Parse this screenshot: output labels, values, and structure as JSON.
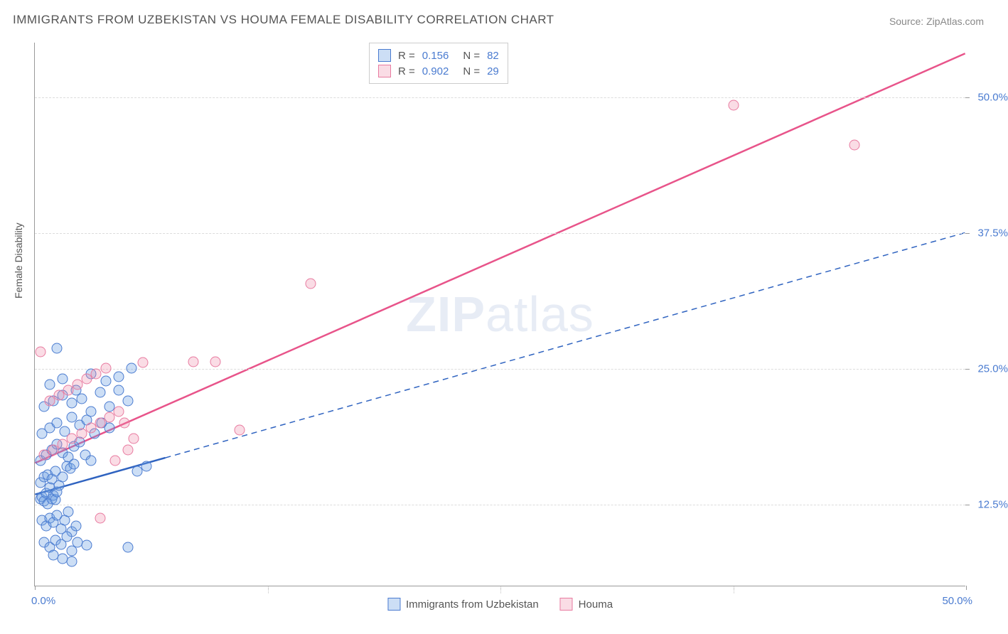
{
  "title": "IMMIGRANTS FROM UZBEKISTAN VS HOUMA FEMALE DISABILITY CORRELATION CHART",
  "source": "Source: ZipAtlas.com",
  "y_axis_label": "Female Disability",
  "watermark_bold": "ZIP",
  "watermark_light": "atlas",
  "chart": {
    "type": "scatter",
    "background_color": "#ffffff",
    "grid_color": "#dcdcdc",
    "axis_color": "#999999",
    "label_color": "#4a7bd0",
    "xlim": [
      0,
      50
    ],
    "ylim": [
      5,
      55
    ],
    "x_ticks": [
      0,
      12.5,
      25,
      37.5,
      50
    ],
    "y_gridlines": [
      12.5,
      25,
      37.5,
      50
    ],
    "x_tick_labels": {
      "left": "0.0%",
      "right": "50.0%"
    },
    "y_tick_labels": [
      "12.5%",
      "25.0%",
      "37.5%",
      "50.0%"
    ],
    "marker_size": 15,
    "series": [
      {
        "name": "Immigrants from Uzbekistan",
        "color_fill": "rgba(110,160,225,0.35)",
        "color_stroke": "#4a7bd0",
        "r_value": "0.156",
        "n_value": "82",
        "trend": {
          "x1": 0,
          "y1": 13.4,
          "x2": 50,
          "y2": 37.5,
          "solid_until_x": 7,
          "stroke": "#2f63c0",
          "width": 2.5
        },
        "points": [
          [
            0.3,
            13.0
          ],
          [
            0.4,
            13.2
          ],
          [
            0.5,
            12.8
          ],
          [
            0.6,
            13.5
          ],
          [
            0.7,
            12.5
          ],
          [
            0.8,
            14.0
          ],
          [
            0.9,
            13.0
          ],
          [
            1.0,
            13.3
          ],
          [
            1.1,
            12.9
          ],
          [
            1.2,
            13.6
          ],
          [
            0.3,
            14.5
          ],
          [
            0.5,
            15.0
          ],
          [
            0.7,
            15.2
          ],
          [
            0.9,
            14.8
          ],
          [
            1.1,
            15.5
          ],
          [
            1.3,
            14.2
          ],
          [
            1.5,
            15.0
          ],
          [
            1.7,
            16.0
          ],
          [
            1.9,
            15.8
          ],
          [
            2.1,
            16.2
          ],
          [
            0.4,
            11.0
          ],
          [
            0.6,
            10.5
          ],
          [
            0.8,
            11.2
          ],
          [
            1.0,
            10.8
          ],
          [
            1.2,
            11.5
          ],
          [
            1.4,
            10.2
          ],
          [
            1.6,
            11.0
          ],
          [
            1.8,
            11.8
          ],
          [
            2.0,
            10.0
          ],
          [
            2.2,
            10.5
          ],
          [
            0.5,
            9.0
          ],
          [
            0.8,
            8.5
          ],
          [
            1.1,
            9.2
          ],
          [
            1.4,
            8.8
          ],
          [
            1.7,
            9.5
          ],
          [
            2.0,
            8.2
          ],
          [
            2.3,
            9.0
          ],
          [
            1.0,
            7.8
          ],
          [
            1.5,
            7.5
          ],
          [
            2.0,
            7.2
          ],
          [
            0.3,
            16.5
          ],
          [
            0.6,
            17.0
          ],
          [
            0.9,
            17.5
          ],
          [
            1.2,
            18.0
          ],
          [
            1.5,
            17.2
          ],
          [
            1.8,
            16.8
          ],
          [
            2.1,
            17.8
          ],
          [
            2.4,
            18.2
          ],
          [
            2.7,
            17.0
          ],
          [
            3.0,
            16.5
          ],
          [
            0.4,
            19.0
          ],
          [
            0.8,
            19.5
          ],
          [
            1.2,
            20.0
          ],
          [
            1.6,
            19.2
          ],
          [
            2.0,
            20.5
          ],
          [
            2.4,
            19.8
          ],
          [
            2.8,
            20.2
          ],
          [
            3.2,
            19.0
          ],
          [
            3.6,
            20.0
          ],
          [
            4.0,
            19.5
          ],
          [
            0.5,
            21.5
          ],
          [
            1.0,
            22.0
          ],
          [
            1.5,
            22.5
          ],
          [
            2.0,
            21.8
          ],
          [
            2.5,
            22.2
          ],
          [
            3.0,
            21.0
          ],
          [
            3.5,
            22.8
          ],
          [
            4.0,
            21.5
          ],
          [
            4.5,
            23.0
          ],
          [
            5.0,
            22.0
          ],
          [
            1.2,
            26.8
          ],
          [
            0.8,
            23.5
          ],
          [
            1.5,
            24.0
          ],
          [
            2.2,
            23.0
          ],
          [
            3.0,
            24.5
          ],
          [
            3.8,
            23.8
          ],
          [
            4.5,
            24.2
          ],
          [
            5.2,
            25.0
          ],
          [
            2.8,
            8.7
          ],
          [
            5.0,
            8.5
          ],
          [
            5.5,
            15.5
          ],
          [
            6.0,
            16.0
          ]
        ]
      },
      {
        "name": "Houma",
        "color_fill": "rgba(240,140,170,0.3)",
        "color_stroke": "#e87ba0",
        "r_value": "0.902",
        "n_value": "29",
        "trend": {
          "x1": 0,
          "y1": 16.3,
          "x2": 50,
          "y2": 54.0,
          "solid_until_x": 50,
          "stroke": "#e8548a",
          "width": 2.5
        },
        "points": [
          [
            0.5,
            17.0
          ],
          [
            1.0,
            17.5
          ],
          [
            1.5,
            18.0
          ],
          [
            2.0,
            18.5
          ],
          [
            2.5,
            19.0
          ],
          [
            3.0,
            19.5
          ],
          [
            3.5,
            20.0
          ],
          [
            4.0,
            20.5
          ],
          [
            4.5,
            21.0
          ],
          [
            5.0,
            17.5
          ],
          [
            0.8,
            22.0
          ],
          [
            1.3,
            22.5
          ],
          [
            1.8,
            23.0
          ],
          [
            2.3,
            23.5
          ],
          [
            2.8,
            24.0
          ],
          [
            3.3,
            24.5
          ],
          [
            3.8,
            25.0
          ],
          [
            4.3,
            16.5
          ],
          [
            4.8,
            20.0
          ],
          [
            5.3,
            18.5
          ],
          [
            0.3,
            26.5
          ],
          [
            3.5,
            11.2
          ],
          [
            5.8,
            25.5
          ],
          [
            8.5,
            25.6
          ],
          [
            9.7,
            25.6
          ],
          [
            11.0,
            19.3
          ],
          [
            14.8,
            32.8
          ],
          [
            37.5,
            49.2
          ],
          [
            44.0,
            45.5
          ]
        ]
      }
    ]
  },
  "stats_legend": {
    "r_label": "R =",
    "n_label": "N ="
  },
  "bottom_legend": {
    "items": [
      "Immigrants from Uzbekistan",
      "Houma"
    ]
  }
}
